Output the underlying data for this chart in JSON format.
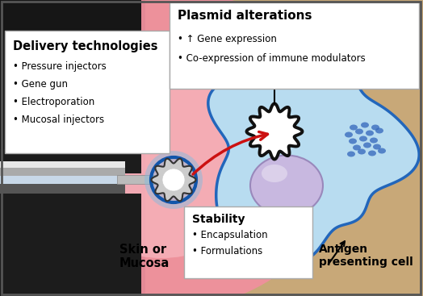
{
  "delivery_box_title": "Delivery technologies",
  "delivery_bullets": [
    "• Pressure injectors",
    "• Gene gun",
    "• Electroporation",
    "• Mucosal injectors"
  ],
  "plasmid_box_title": "Plasmid alterations",
  "plasmid_bullets": [
    "• ↑ Gene expression",
    "• Co-expression of immune modulators"
  ],
  "stability_title": "Stability",
  "stability_bullets": [
    "• Encapsulation",
    "• Formulations"
  ],
  "antigen_label": "Antigen\npresenting cell",
  "skin_label": "Skin or\nMucosa",
  "cell_fill": "#b8dcf0",
  "cell_border": "#2266bb",
  "nucleus_fill": "#c8b8e0",
  "nucleus_border": "#9988bb",
  "plasmid_border": "#111111",
  "dna_color": "#3366bb",
  "arrow_color": "#cc1111",
  "figsize": [
    5.24,
    3.67
  ],
  "dpi": 100
}
